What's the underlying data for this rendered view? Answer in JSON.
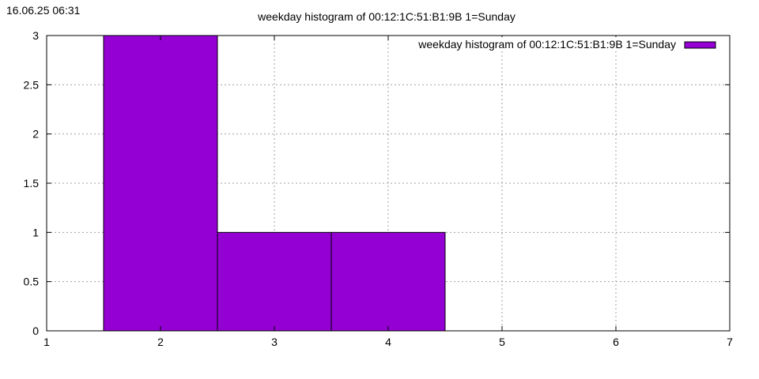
{
  "timestamp": "16.06.25 06:31",
  "chart_data": {
    "type": "bar",
    "title": "weekday histogram of 00:12:1C:51:B1:9B 1=Sunday",
    "xlabel": "",
    "ylabel": "",
    "xlim": [
      1,
      7
    ],
    "ylim": [
      0,
      3
    ],
    "x_ticks": [
      "1",
      "2",
      "3",
      "4",
      "5",
      "6",
      "7"
    ],
    "y_ticks": [
      "0",
      "0.5",
      "1",
      "1.5",
      "2",
      "2.5",
      "3"
    ],
    "grid": true,
    "legend_position": "top-right",
    "series": [
      {
        "name": "weekday histogram of 00:12:1C:51:B1:9B 1=Sunday",
        "color": "#9400d3",
        "x": [
          2,
          3,
          4
        ],
        "values": [
          3,
          1,
          1
        ]
      }
    ]
  }
}
